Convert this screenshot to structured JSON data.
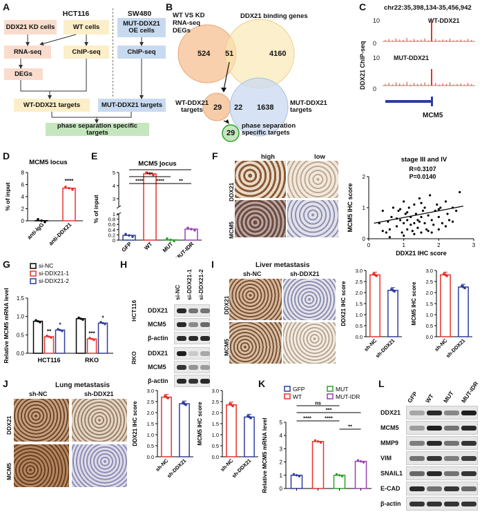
{
  "panels": {
    "A": "A",
    "B": "B",
    "C": "C",
    "D": "D",
    "E": "E",
    "F": "F",
    "G": "G",
    "H": "H",
    "I": "I",
    "J": "J",
    "K": "K",
    "L": "L"
  },
  "panelA": {
    "cell_line_1": "HCT116",
    "cell_line_2": "SW480",
    "kd_cells": "DDX21 KD cells",
    "wt_cells": "WT cells",
    "mut_oe": "MUT-DDX21\nOE cells",
    "rnaseq": "RNA-seq",
    "chipseq_1": "ChIP-seq",
    "chipseq_2": "ChIP-seq",
    "degs": "DEGs",
    "wt_targets": "WT-DDX21 targets",
    "mut_targets": "MUT-DDX21 targets",
    "ps_targets": "phase separation specific targets"
  },
  "panelB": {
    "set1": "WT VS KD\nRNA-seq\nDEGs",
    "set2": "DDX21 binding genes",
    "n_left": "524",
    "n_overlap": "51",
    "n_right": "4160",
    "wt_label": "WT-DDX21\ntargets",
    "n_wt_only": "29",
    "n_wt_mut": "22",
    "n_mut_only": "1638",
    "mut_label": "MUT-DDX21\ntargets",
    "n_ps": "29",
    "ps_label": "phase separation\nspecific targets"
  },
  "panelC": {
    "locus": "chr22:35,398,134-35,456,942",
    "ylabel": "DDX21 ChIP-seq",
    "track1": "WT-DDX21",
    "track2": "MUT-DDX21",
    "y_max_1": "10",
    "y_min_1": "0",
    "y_max_2": "10",
    "y_min_2": "0",
    "gene": "MCM5"
  },
  "panelD": {
    "chart_data": {
      "type": "bar",
      "title": "MCM5 locus",
      "ylabel": "% of input",
      "categories": [
        "anti-IgG",
        "anti-DDX21"
      ],
      "values": [
        0.03,
        5.4
      ],
      "ylim": [
        0,
        8
      ],
      "yticks": [
        "0",
        "2",
        "4",
        "6",
        "8"
      ],
      "sig": "****",
      "colors": [
        "#000000",
        "#e8312a"
      ]
    }
  },
  "panelE": {
    "chart_data": {
      "type": "bar",
      "title": "MCM5 locus",
      "ylabel": "% of input",
      "categories": [
        "GFP",
        "WT",
        "MUT",
        "MUT-IDR"
      ],
      "values": [
        0.18,
        4.9,
        0.01,
        0.42
      ],
      "yticks": [
        "0",
        "0.2",
        "0.4",
        "0.6",
        "0.8",
        "1",
        "3",
        "4",
        "5"
      ],
      "colors": [
        "#2e3c9e",
        "#e8312a",
        "#2ca02c",
        "#9b3fb5"
      ],
      "sig": [
        "*",
        "***",
        "****",
        "****",
        "**"
      ]
    }
  },
  "panelF": {
    "col_high": "high",
    "col_low": "low",
    "row1": "DDX21",
    "row2": "MCM5",
    "chart_data": {
      "type": "scatter",
      "title": "stage III and IV",
      "xlabel": "DDX21 IHC score",
      "ylabel": "MCM5 IHC score",
      "xlim": [
        0,
        3
      ],
      "ylim": [
        0,
        2
      ],
      "xticks": [
        "0",
        "1",
        "2",
        "3"
      ],
      "yticks": [
        "0",
        "1",
        "2"
      ],
      "r_text": "R=0.3107",
      "p_text": "P=0.0140",
      "x": [
        0.3,
        0.4,
        0.5,
        0.55,
        0.6,
        0.65,
        0.7,
        0.8,
        0.85,
        0.9,
        0.95,
        1.0,
        1.0,
        1.05,
        1.1,
        1.1,
        1.15,
        1.2,
        1.2,
        1.25,
        1.3,
        1.3,
        1.35,
        1.4,
        1.4,
        1.45,
        1.5,
        1.5,
        1.55,
        1.6,
        1.6,
        1.65,
        1.7,
        1.75,
        1.8,
        1.85,
        1.9,
        1.95,
        2.0,
        2.0,
        2.05,
        2.1,
        2.2,
        2.25,
        2.3,
        2.4,
        2.5,
        2.6,
        1.0,
        0.6,
        1.3,
        1.8,
        2.2,
        0.9,
        1.5,
        1.7,
        2.4,
        0.4,
        1.1,
        2.0,
        1.45,
        0.8
      ],
      "y": [
        0.5,
        0.9,
        0.2,
        0.55,
        0.3,
        0.7,
        1.0,
        0.4,
        0.9,
        0.6,
        0.2,
        1.2,
        0.5,
        0.8,
        0.3,
        0.6,
        1.0,
        0.45,
        0.7,
        0.25,
        1.1,
        0.5,
        0.8,
        0.35,
        0.6,
        1.3,
        0.2,
        0.7,
        0.9,
        0.5,
        1.0,
        0.3,
        0.75,
        1.4,
        0.6,
        0.45,
        0.9,
        1.1,
        0.3,
        0.7,
        1.0,
        0.5,
        1.2,
        0.8,
        0.6,
        1.0,
        0.9,
        1.5,
        0.1,
        0.05,
        0.15,
        0.2,
        0.4,
        0.95,
        1.15,
        0.25,
        0.55,
        0.25,
        0.85,
        0.95,
        0.55,
        0.65
      ],
      "fit": {
        "x0": 0.15,
        "y0": 0.5,
        "x1": 2.7,
        "y1": 1.05
      }
    }
  },
  "panelG": {
    "chart_data": {
      "type": "bar",
      "ylabel": "Relative MCM5 mRNA level",
      "categories": [
        "HCT116",
        "RKO"
      ],
      "series": [
        {
          "name": "si-NC",
          "values": [
            0.87,
            0.94
          ],
          "color": "#000000"
        },
        {
          "name": "si-DDX21-1",
          "values": [
            0.45,
            0.39
          ],
          "color": "#e8312a"
        },
        {
          "name": "si-DDX21-2",
          "values": [
            0.63,
            0.82
          ],
          "color": "#2e3c9e"
        }
      ],
      "ylim": [
        0,
        1.5
      ],
      "yticks": [
        "0.0",
        "0.5",
        "1.0",
        "1.5"
      ],
      "sig": [
        [
          "",
          "**",
          "*"
        ],
        [
          "",
          "***",
          "*"
        ]
      ]
    }
  },
  "panelH": {
    "lanes": [
      "si-NC",
      "si-DDX21-1",
      "si-DDX21-2"
    ],
    "group1": "HCT116",
    "group2": "RKO",
    "bands1": [
      "DDX21",
      "MCM5",
      "β-actin"
    ],
    "bands2": [
      "DDX21",
      "MCM5",
      "β-actin"
    ]
  },
  "panelI": {
    "title": "Liver metastasis",
    "col1": "sh-NC",
    "col2": "sh-DDX21",
    "row1": "DDX21",
    "row2": "MCM5",
    "bar1": {
      "chart_data": {
        "type": "bar",
        "ylabel": "DDX21 IHC score",
        "categories": [
          "sh-NC",
          "sh-DDX21"
        ],
        "values": [
          2.8,
          2.1
        ],
        "ylim": [
          0,
          3
        ],
        "yticks": [
          "0.0",
          "0.5",
          "1.0",
          "1.5",
          "2.0",
          "2.5",
          "3.0"
        ],
        "colors": [
          "#e8312a",
          "#2e3c9e"
        ]
      }
    },
    "bar2": {
      "chart_data": {
        "type": "bar",
        "ylabel": "MCM5 IHC score",
        "categories": [
          "sh-NC",
          "sh-DDX21"
        ],
        "values": [
          2.8,
          2.25
        ],
        "ylim": [
          0,
          3
        ],
        "yticks": [
          "0.0",
          "0.5",
          "1.0",
          "1.5",
          "2.0",
          "2.5",
          "3.0"
        ],
        "colors": [
          "#e8312a",
          "#2e3c9e"
        ]
      }
    }
  },
  "panelJ": {
    "title": "Lung metastasis",
    "col1": "sh-NC",
    "col2": "sh-DDX21",
    "row1": "DDX21",
    "row2": "MCM5",
    "bar1": {
      "chart_data": {
        "type": "bar",
        "ylabel": "DDX21 IHC score",
        "categories": [
          "sh-NC",
          "sh-DDX21"
        ],
        "values": [
          2.7,
          2.4
        ],
        "ylim": [
          0,
          3
        ],
        "yticks": [
          "0.0",
          "0.5",
          "1.0",
          "1.5",
          "2.0",
          "2.5",
          "3.0"
        ],
        "colors": [
          "#e8312a",
          "#2e3c9e"
        ]
      }
    },
    "bar2": {
      "chart_data": {
        "type": "bar",
        "ylabel": "MCM5 IHC score",
        "categories": [
          "sh-NC",
          "sh-DDX21"
        ],
        "values": [
          2.35,
          1.8
        ],
        "ylim": [
          0,
          3
        ],
        "yticks": [
          "0.0",
          "0.5",
          "1.0",
          "1.5",
          "2.0",
          "2.5",
          "3.0"
        ],
        "colors": [
          "#e8312a",
          "#2e3c9e"
        ]
      }
    }
  },
  "panelK": {
    "legend": [
      "GFP",
      "MUT",
      "WT",
      "MUT-IDR"
    ],
    "chart_data": {
      "type": "bar",
      "ylabel": "Relative MCM5 mRNA level",
      "categories": [
        "GFP",
        "WT",
        "MUT",
        "MUT-IDR"
      ],
      "values": [
        1.0,
        3.55,
        1.0,
        2.05
      ],
      "ylim": [
        0,
        5
      ],
      "yticks": [
        "0",
        "1",
        "2",
        "3",
        "4",
        "5"
      ],
      "colors": [
        "#2e3c9e",
        "#e8312a",
        "#2ca02c",
        "#9b3fb5"
      ],
      "sig": [
        "ns",
        "***",
        "****",
        "****",
        "**"
      ]
    }
  },
  "panelL": {
    "lanes": [
      "GFP",
      "WT",
      "MUT",
      "MUT-IDR"
    ],
    "bands": [
      "DDX21",
      "MCM5",
      "MMP9",
      "VIM",
      "SNAIL1",
      "E-CAD",
      "β-actin"
    ]
  }
}
